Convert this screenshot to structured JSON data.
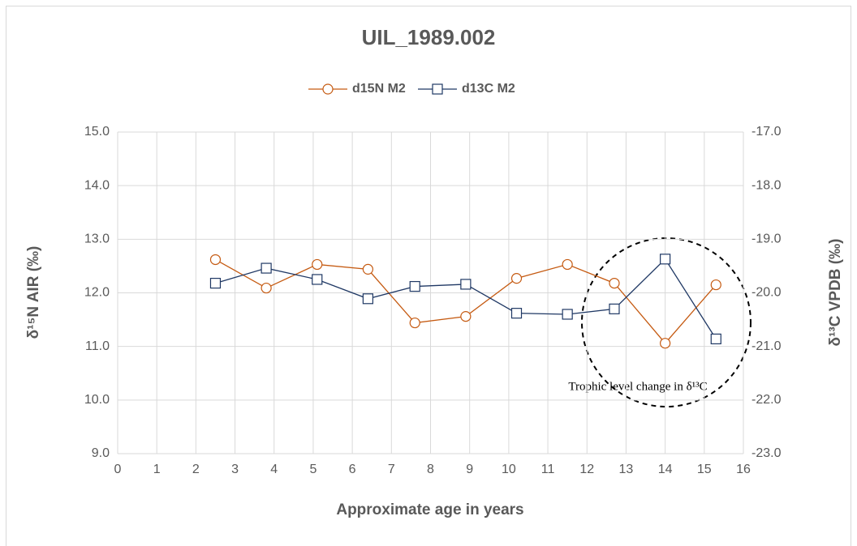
{
  "chart_data": {
    "type": "line",
    "title": "UIL_1989.002",
    "x_label": "Approximate age in years",
    "y_label": "δ¹⁵N AIR (‰)",
    "y2_label": "δ¹³C VPDB (‰)",
    "annotation": "Trophic level change in δ¹³C",
    "x": [
      2.5,
      3.8,
      5.1,
      6.4,
      7.6,
      8.9,
      10.2,
      11.5,
      12.7,
      14.0,
      15.3
    ],
    "series": [
      {
        "name": "d15N M2",
        "color": "#c55a11",
        "marker": "circle",
        "axis": "y",
        "values": [
          12.62,
          12.09,
          12.53,
          12.44,
          11.44,
          11.56,
          12.27,
          12.53,
          12.18,
          11.06,
          12.15
        ]
      },
      {
        "name": "d13C M2",
        "color": "#1f3864",
        "marker": "square",
        "axis": "y2",
        "values": [
          -19.82,
          -19.54,
          -19.75,
          -20.11,
          -19.88,
          -19.84,
          -20.38,
          -20.4,
          -20.3,
          -19.37,
          -20.86
        ]
      }
    ],
    "xlim": [
      0,
      16
    ],
    "xticks": [
      0,
      1,
      2,
      3,
      4,
      5,
      6,
      7,
      8,
      9,
      10,
      11,
      12,
      13,
      14,
      15,
      16
    ],
    "ylim": [
      9,
      15
    ],
    "yticks": [
      {
        "value": 9,
        "label": "9.0"
      },
      {
        "value": 10,
        "label": "10.0"
      },
      {
        "value": 11,
        "label": "11.0"
      },
      {
        "value": 12,
        "label": "12.0"
      },
      {
        "value": 13,
        "label": "13.0"
      },
      {
        "value": 14,
        "label": "14.0"
      },
      {
        "value": 15,
        "label": "15.0"
      }
    ],
    "y2lim": [
      -23,
      -17
    ],
    "y2ticks": [
      {
        "value": -23,
        "label": "-23.0"
      },
      {
        "value": -22,
        "label": "-22.0"
      },
      {
        "value": -21,
        "label": "-21.0"
      },
      {
        "value": -20,
        "label": "-20.0"
      },
      {
        "value": -19,
        "label": "-19.0"
      },
      {
        "value": -18,
        "label": "-18.0"
      },
      {
        "value": -17,
        "label": "-17.0"
      }
    ],
    "grid": true,
    "legend": "top"
  }
}
